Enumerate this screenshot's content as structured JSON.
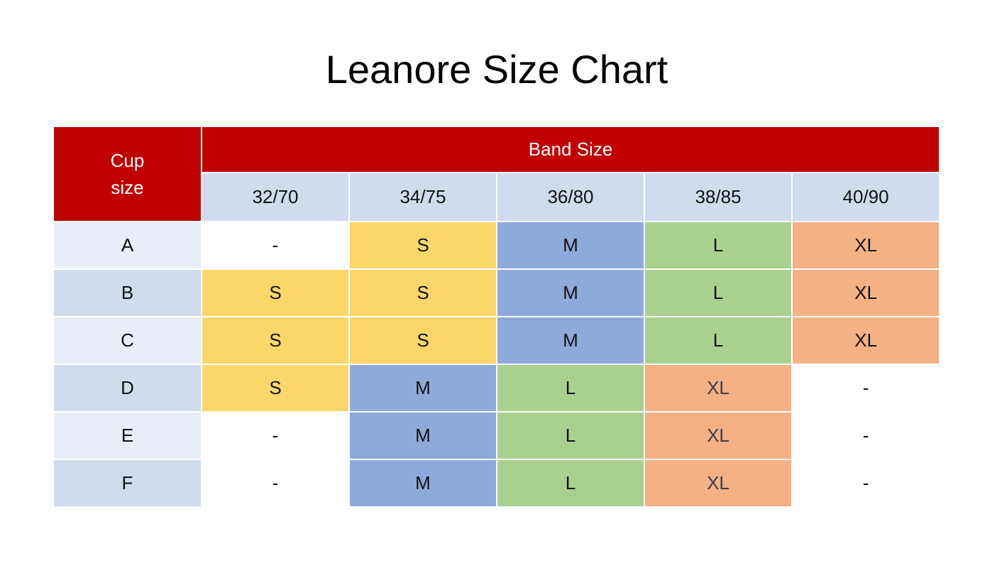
{
  "title": "Leanore Size Chart",
  "header": {
    "cup_label_line1": "Cup",
    "cup_label_line2": "size",
    "band_label": "Band Size",
    "band_sizes": [
      "32/70",
      "34/75",
      "36/80",
      "38/85",
      "40/90"
    ]
  },
  "rows": [
    {
      "cup": "A",
      "sizes": [
        "-",
        "S",
        "M",
        "L",
        "XL"
      ]
    },
    {
      "cup": "B",
      "sizes": [
        "S",
        "S",
        "M",
        "L",
        "XL"
      ]
    },
    {
      "cup": "C",
      "sizes": [
        "S",
        "S",
        "M",
        "L",
        "XL"
      ]
    },
    {
      "cup": "D",
      "sizes": [
        "S",
        "M",
        "L",
        "XL",
        "-"
      ]
    },
    {
      "cup": "E",
      "sizes": [
        "-",
        "M",
        "L",
        "XL",
        "-"
      ]
    },
    {
      "cup": "F",
      "sizes": [
        "-",
        "M",
        "L",
        "XL",
        "-"
      ]
    }
  ],
  "colors": {
    "header_red": "#c00000",
    "S": "#fcd669",
    "M": "#8eaadb",
    "L": "#a9d18e",
    "XL": "#f4b183",
    "-": "#ffffff",
    "band_header_bg": "#d0dcee",
    "cup_odd_bg": "#e8edf7",
    "cup_even_bg": "#d0dcee"
  }
}
